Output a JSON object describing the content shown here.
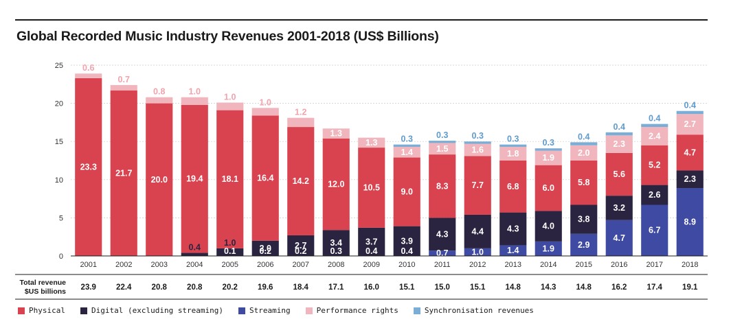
{
  "title": "Global Recorded Music Industry Revenues 2001-2018 (US$ Billions)",
  "colors": {
    "physical": "#d9434f",
    "digital": "#2a2440",
    "streaming": "#3f4aa3",
    "performance": "#f1b5bd",
    "sync": "#7aaed6",
    "digital_label_light": "#ffffff",
    "performance_label": "#f1a3ad",
    "sync_label": "#5f9bcc"
  },
  "total_row": {
    "header_line1": "Total revenue",
    "header_line2": "$US billions",
    "values": [
      "23.9",
      "22.4",
      "20.8",
      "20.8",
      "20.2",
      "19.6",
      "18.4",
      "17.1",
      "16.0",
      "15.1",
      "15.0",
      "15.1",
      "14.8",
      "14.3",
      "14.8",
      "16.2",
      "17.4",
      "19.1"
    ]
  },
  "legend": [
    {
      "label": "Physical",
      "color": "#d9434f"
    },
    {
      "label": "Digital (excluding streaming)",
      "color": "#2a2440"
    },
    {
      "label": "Streaming",
      "color": "#3f4aa3"
    },
    {
      "label": "Performance rights",
      "color": "#f1b5bd"
    },
    {
      "label": "Synchronisation revenues",
      "color": "#7aaed6"
    }
  ],
  "chart_data": {
    "type": "bar",
    "stacked": true,
    "title": "Global Recorded Music Industry Revenues 2001-2018 (US$ Billions)",
    "categories": [
      "2001",
      "2002",
      "2003",
      "2004",
      "2005",
      "2006",
      "2007",
      "2008",
      "2009",
      "2010",
      "2011",
      "2012",
      "2013",
      "2014",
      "2015",
      "2016",
      "2017",
      "2018"
    ],
    "ylim": [
      0,
      25
    ],
    "yticks": [
      0,
      5,
      10,
      15,
      20,
      25
    ],
    "grid": true,
    "legend_position": "bottom",
    "series": [
      {
        "name": "Streaming",
        "key": "streaming",
        "values": [
          0,
          0,
          0,
          0,
          0,
          0,
          0,
          0,
          0,
          0,
          0.7,
          1.0,
          1.4,
          1.9,
          2.9,
          4.7,
          6.7,
          8.9
        ],
        "labels": [
          "",
          "",
          "",
          "",
          "",
          "",
          "",
          "",
          "",
          "",
          "0.7",
          "1.0",
          "1.4",
          "1.9",
          "2.9",
          "4.7",
          "6.7",
          "8.9"
        ]
      },
      {
        "name": "Digital (excluding streaming)",
        "key": "digital",
        "values": [
          0,
          0,
          0,
          0.4,
          1.0,
          2.0,
          2.7,
          3.4,
          3.7,
          3.9,
          4.3,
          4.4,
          4.3,
          4.0,
          3.8,
          3.2,
          2.6,
          2.3
        ],
        "labels": [
          "",
          "",
          "",
          "0.4",
          "1.0",
          "2.0",
          "2.7",
          "3.4",
          "3.7",
          "3.9",
          "4.3",
          "4.4",
          "4.3",
          "4.0",
          "3.8",
          "3.2",
          "2.6",
          "2.3"
        ]
      },
      {
        "name": "Physical",
        "key": "physical",
        "values": [
          23.3,
          21.7,
          20.0,
          19.4,
          18.1,
          16.4,
          14.2,
          12.0,
          10.5,
          9.0,
          8.3,
          7.7,
          6.8,
          6.0,
          5.8,
          5.6,
          5.2,
          4.7
        ],
        "labels": [
          "23.3",
          "21.7",
          "20.0",
          "19.4",
          "18.1",
          "16.4",
          "14.2",
          "12.0",
          "10.5",
          "9.0",
          "8.3",
          "7.7",
          "6.8",
          "6.0",
          "5.8",
          "5.6",
          "5.2",
          "4.7"
        ]
      },
      {
        "name": "Performance rights",
        "key": "performance",
        "values": [
          0.6,
          0.7,
          0.8,
          1.0,
          1.0,
          1.0,
          1.2,
          1.3,
          1.3,
          1.4,
          1.5,
          1.6,
          1.8,
          1.9,
          2.0,
          2.3,
          2.4,
          2.7
        ],
        "labels": [
          "0.6",
          "0.7",
          "0.8",
          "1.0",
          "1.0",
          "1.0",
          "1.2",
          "1.3",
          "1.3",
          "1.4",
          "1.5",
          "1.6",
          "1.8",
          "1.9",
          "2.0",
          "2.3",
          "2.4",
          "2.7"
        ]
      },
      {
        "name": "Synchronisation revenues",
        "key": "sync",
        "values": [
          0,
          0,
          0,
          0,
          0,
          0,
          0,
          0,
          0,
          0.3,
          0.3,
          0.3,
          0.3,
          0.3,
          0.4,
          0.4,
          0.4,
          0.4
        ],
        "labels": [
          "",
          "",
          "",
          "",
          "",
          "",
          "",
          "",
          "",
          "0.3",
          "0.3",
          "0.3",
          "0.3",
          "0.3",
          "0.4",
          "0.4",
          "0.4",
          "0.4"
        ]
      }
    ],
    "bottom_labels": {
      "physical": [
        "",
        "",
        "",
        "",
        "0.1",
        "0.2",
        "0.2",
        "0.3",
        "0.4",
        "0.4",
        "",
        "",
        "",
        "",
        "",
        "",
        "",
        ""
      ]
    }
  }
}
